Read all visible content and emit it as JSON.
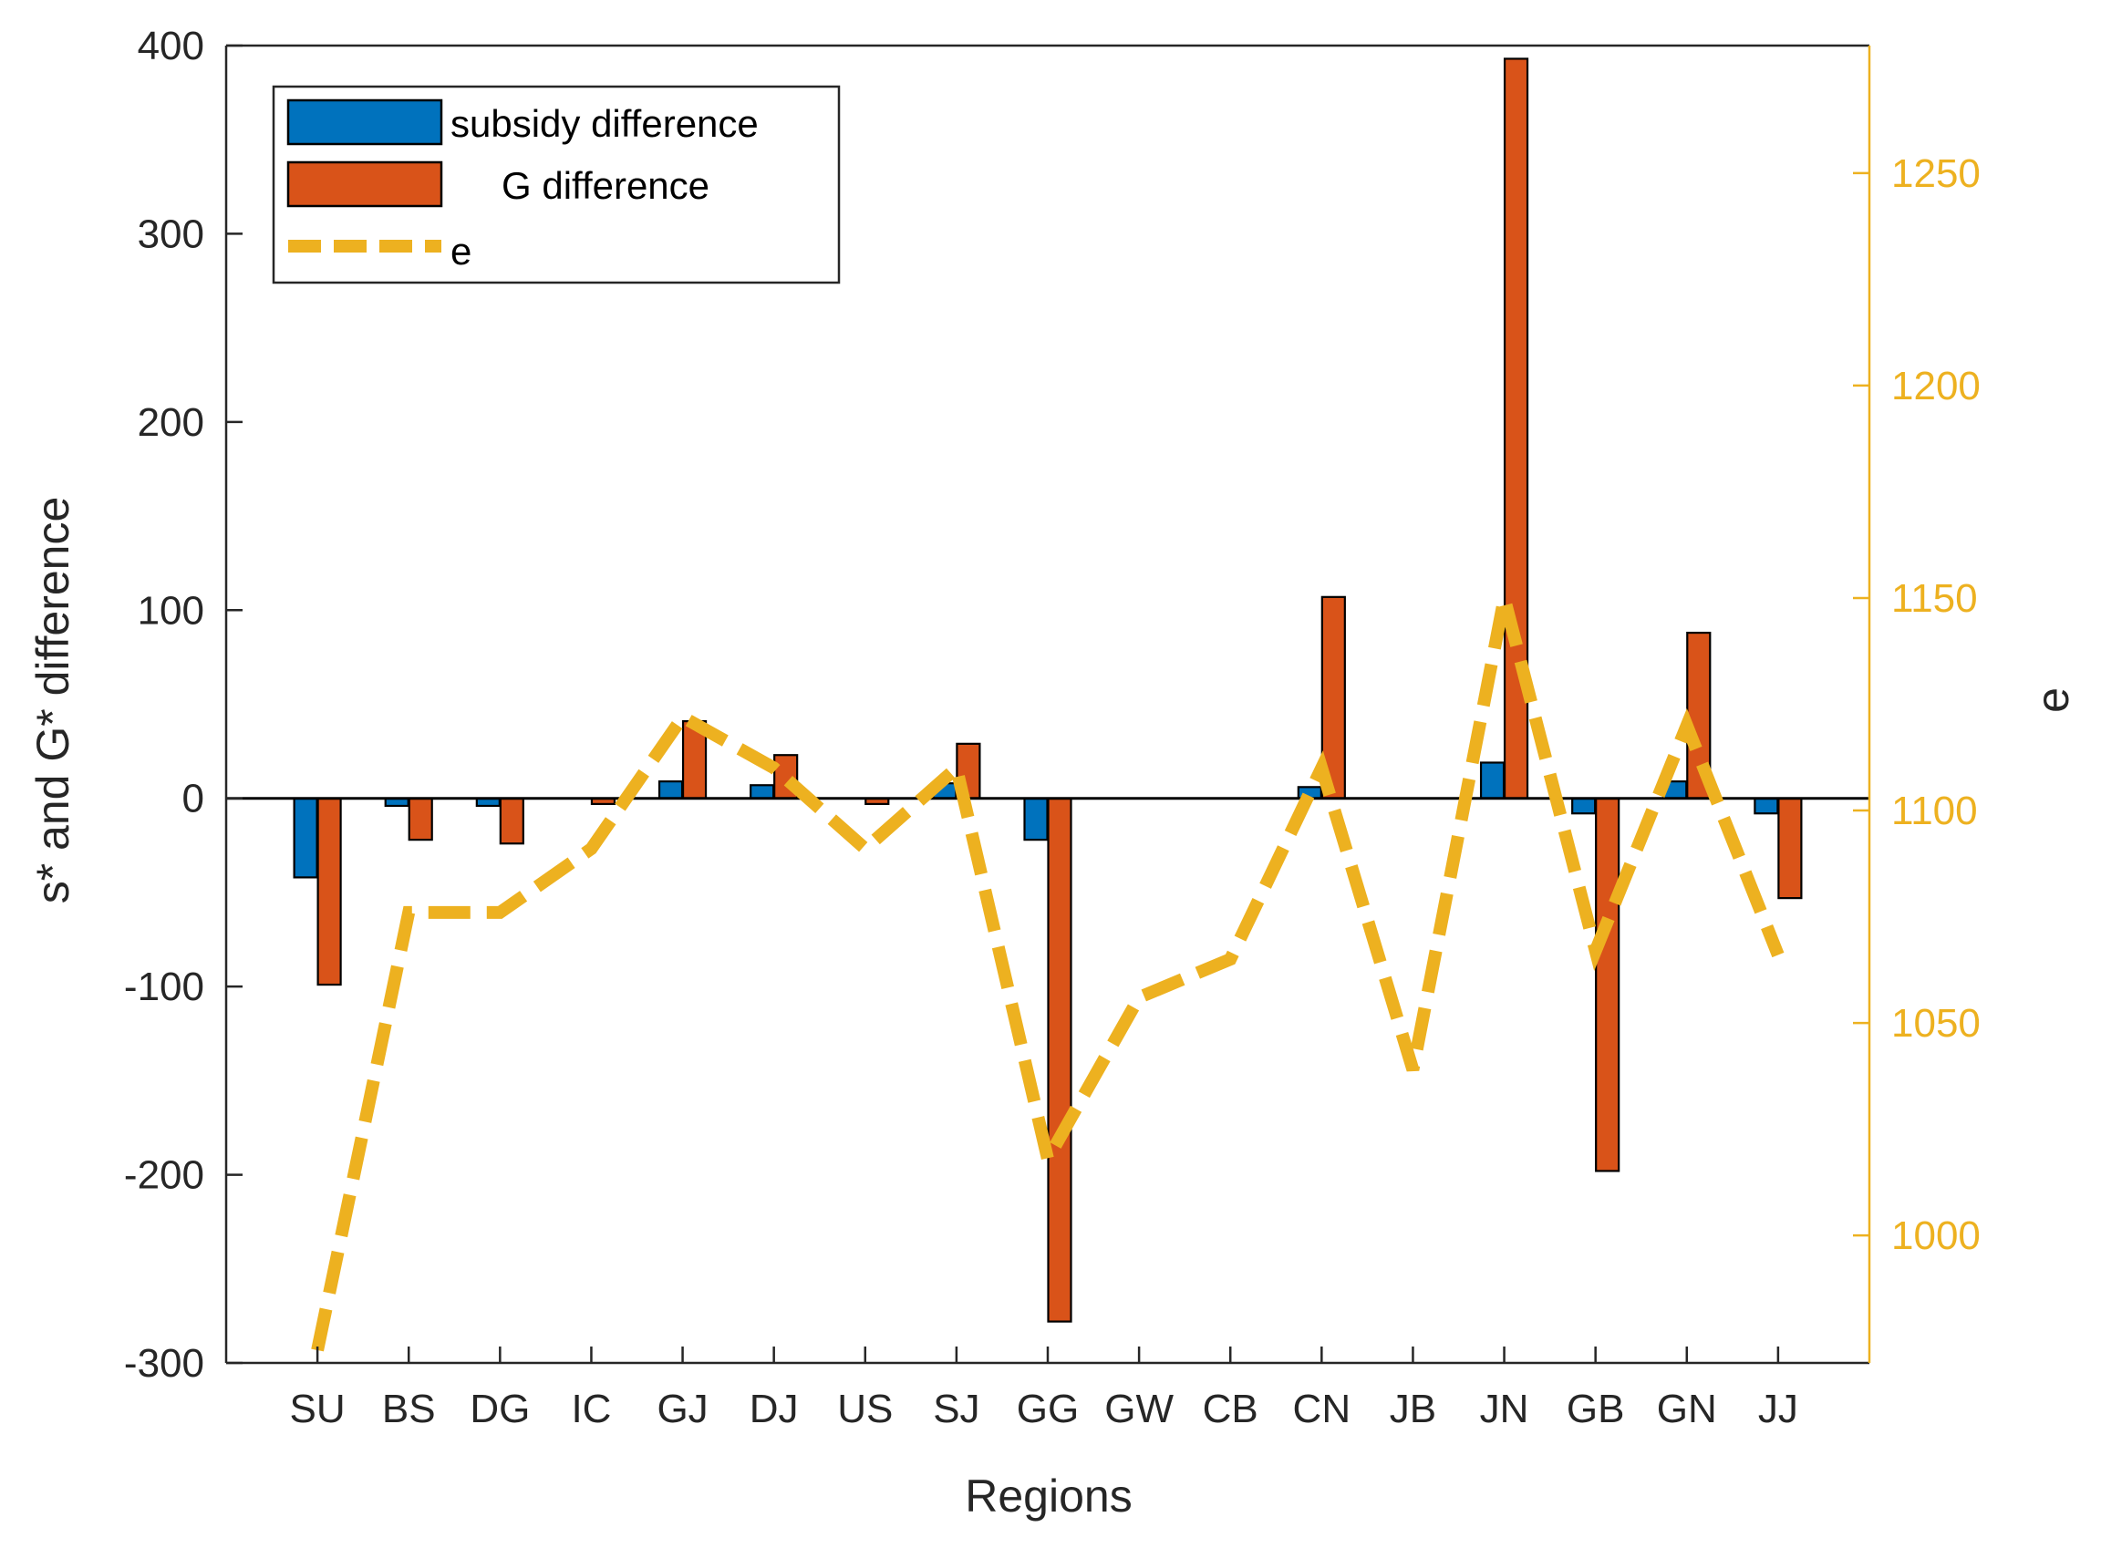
{
  "chart_data": {
    "type": "bar",
    "categories": [
      "SU",
      "BS",
      "DG",
      "IC",
      "GJ",
      "DJ",
      "US",
      "SJ",
      "GG",
      "GW",
      "CB",
      "CN",
      "JB",
      "JN",
      "GB",
      "GN",
      "JJ"
    ],
    "series": [
      {
        "name": "subsidy difference",
        "axis": "left",
        "kind": "bar",
        "color": "#0072BD",
        "values": [
          -42,
          -4,
          -4,
          0,
          9,
          7,
          0,
          8,
          -22,
          0,
          0,
          6,
          0,
          19,
          -8,
          9,
          -8
        ]
      },
      {
        "name": "G difference",
        "axis": "left",
        "kind": "bar",
        "color": "#D95319",
        "values": [
          -99,
          -22,
          -24,
          -3,
          41,
          23,
          -3,
          29,
          -278,
          0,
          0,
          107,
          0,
          393,
          -198,
          88,
          -53
        ]
      },
      {
        "name": "e",
        "axis": "right",
        "kind": "line",
        "style": "dashed",
        "color": "#EDB120",
        "values": [
          973,
          1076,
          1076,
          1091,
          1122,
          1110,
          1091,
          1110,
          1018,
          1056,
          1065,
          1110,
          1039,
          1150,
          1067,
          1120,
          1066
        ]
      }
    ],
    "xlabel": "Regions",
    "ylabel": "s* and G* difference",
    "y2label": "e",
    "ylim": [
      -300,
      400
    ],
    "y2lim": [
      970,
      1280
    ],
    "yticks": [
      "-300",
      "-200",
      "-100",
      "0",
      "100",
      "200",
      "300",
      "400"
    ],
    "y2ticks": [
      "1000",
      "1050",
      "1100",
      "1150",
      "1200",
      "1250"
    ],
    "legend_position": "top-left",
    "colors": {
      "axis": "#262626",
      "right_axis": "#EDB120",
      "zero_line": "#000000"
    }
  }
}
